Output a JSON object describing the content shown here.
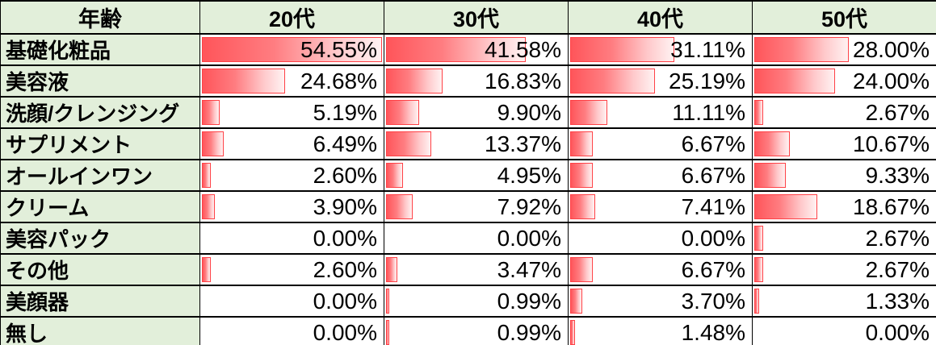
{
  "table": {
    "corner_header": "年齢",
    "column_headers": [
      "20代",
      "30代",
      "40代",
      "50代"
    ],
    "rows": [
      {
        "label": "基礎化粧品",
        "values": [
          "54.55%",
          "41.58%",
          "31.11%",
          "28.00%"
        ]
      },
      {
        "label": "美容液",
        "values": [
          "24.68%",
          "16.83%",
          "25.19%",
          "24.00%"
        ]
      },
      {
        "label": "洗顔/クレンジング",
        "values": [
          "5.19%",
          "9.90%",
          "11.11%",
          "2.67%"
        ]
      },
      {
        "label": "サプリメント",
        "values": [
          "6.49%",
          "13.37%",
          "6.67%",
          "10.67%"
        ]
      },
      {
        "label": "オールインワン",
        "values": [
          "2.60%",
          "4.95%",
          "6.67%",
          "9.33%"
        ]
      },
      {
        "label": "クリーム",
        "values": [
          "3.90%",
          "7.92%",
          "7.41%",
          "18.67%"
        ]
      },
      {
        "label": "美容パック",
        "values": [
          "0.00%",
          "0.00%",
          "0.00%",
          "2.67%"
        ]
      },
      {
        "label": "その他",
        "values": [
          "2.60%",
          "3.47%",
          "6.67%",
          "2.67%"
        ]
      },
      {
        "label": "美顔器",
        "values": [
          "0.00%",
          "0.99%",
          "3.70%",
          "1.33%"
        ]
      },
      {
        "label": "無し",
        "values": [
          "0.00%",
          "0.99%",
          "1.48%",
          "0.00%"
        ]
      }
    ]
  },
  "colors": {
    "header_bg": "#e2efda",
    "grid_border": "#000000",
    "bar_fill_start": "#ff555a",
    "bar_fill_end": "#fff2f2",
    "bar_border": "#ff4146"
  },
  "chart_data": {
    "type": "table",
    "title": "",
    "row_header_label": "年齢",
    "categories": [
      "基礎化粧品",
      "美容液",
      "洗顔/クレンジング",
      "サプリメント",
      "オールインワン",
      "クリーム",
      "美容パック",
      "その他",
      "美顔器",
      "無し"
    ],
    "series": [
      {
        "name": "20代",
        "values": [
          54.55,
          24.68,
          5.19,
          6.49,
          2.6,
          3.9,
          0.0,
          2.6,
          0.0,
          0.0
        ]
      },
      {
        "name": "30代",
        "values": [
          41.58,
          16.83,
          9.9,
          13.37,
          4.95,
          7.92,
          0.0,
          3.47,
          0.99,
          0.99
        ]
      },
      {
        "name": "40代",
        "values": [
          31.11,
          25.19,
          11.11,
          6.67,
          6.67,
          7.41,
          0.0,
          6.67,
          3.7,
          1.48
        ]
      },
      {
        "name": "50代",
        "values": [
          28.0,
          24.0,
          2.67,
          10.67,
          9.33,
          18.67,
          2.67,
          2.67,
          1.33,
          0.0
        ]
      }
    ],
    "value_unit": "%",
    "databar": {
      "min": 0,
      "max": 54.55,
      "note": "in-cell gradient data bars, width proportional to value relative to max 54.55"
    }
  }
}
